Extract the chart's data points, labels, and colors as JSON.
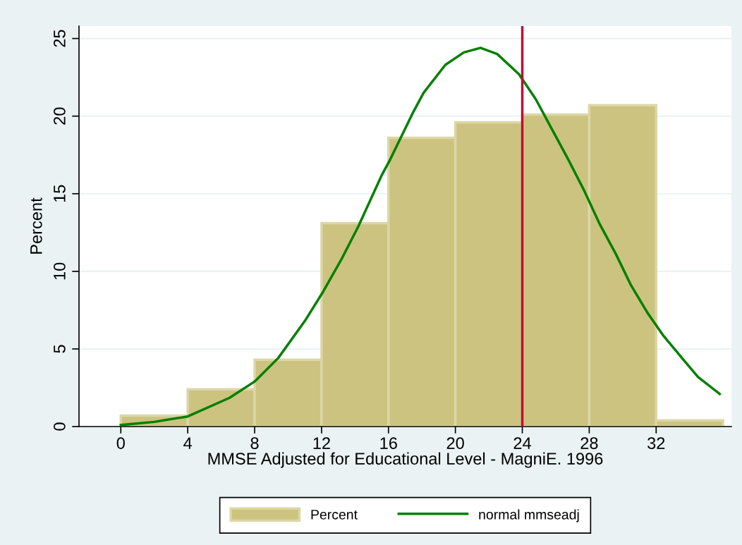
{
  "chart_data": {
    "type": "histogram",
    "xlabel": "MMSE Adjusted for Educational Level - MagniE. 1996",
    "ylabel": "Percent",
    "bins": [
      0,
      4,
      8,
      12,
      16,
      20,
      24,
      28,
      32,
      36
    ],
    "values": [
      0.7,
      2.4,
      4.3,
      13.1,
      18.6,
      19.6,
      20.1,
      20.7,
      0.4
    ],
    "color": "#ccc380",
    "series": [
      {
        "type": "line",
        "name": "normal mmseadj",
        "color": "#008000",
        "x": [
          0,
          2,
          4,
          6.5,
          8,
          9.4,
          11,
          12.1,
          13.2,
          14.2,
          15.6,
          16.1,
          17.5,
          18.1,
          19.4,
          20.5,
          21.5,
          22.5,
          23.8,
          24.8,
          25.7,
          26.7,
          27.7,
          28.6,
          29.6,
          30.5,
          31.5,
          32.4,
          33.4,
          34.5,
          35.8
        ],
        "values": [
          0.1,
          0.3,
          0.65,
          1.85,
          2.9,
          4.4,
          6.8,
          8.7,
          10.8,
          12.9,
          16.2,
          17.2,
          20.3,
          21.5,
          23.3,
          24.1,
          24.4,
          24.0,
          22.7,
          21.1,
          19.3,
          17.3,
          15.2,
          13.1,
          11.1,
          9.1,
          7.3,
          5.9,
          4.6,
          3.2,
          2.1
        ]
      }
    ],
    "ref_lines": [
      {
        "axis": "x",
        "value": 24,
        "color": "#c10534"
      }
    ],
    "xlim": [
      -2.5,
      36.5
    ],
    "ylim": [
      0,
      25.8
    ],
    "xticks": [
      0,
      4,
      8,
      12,
      16,
      20,
      24,
      28,
      32
    ],
    "yticks": [
      0,
      5,
      10,
      15,
      20,
      25
    ],
    "grid": "y",
    "legend": "bottom"
  }
}
